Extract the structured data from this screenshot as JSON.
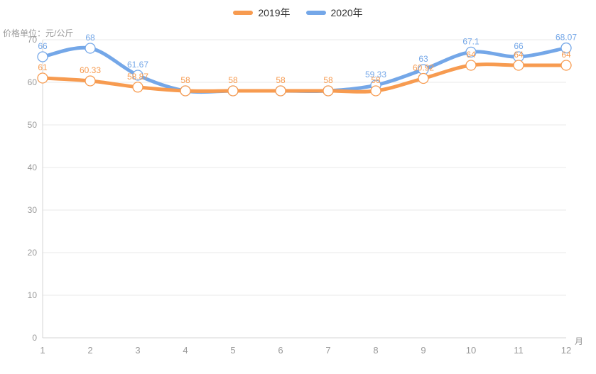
{
  "legend": {
    "items": [
      {
        "label": "2019年",
        "color": "#f79b50"
      },
      {
        "label": "2020年",
        "color": "#74a7e8"
      }
    ]
  },
  "chart_data": {
    "type": "line",
    "title": "",
    "y_axis_title": "价格单位：元/公斤",
    "x_axis_unit": "月",
    "categories": [
      "1",
      "2",
      "3",
      "4",
      "5",
      "6",
      "7",
      "8",
      "9",
      "10",
      "11",
      "12"
    ],
    "ylim": [
      0,
      70
    ],
    "y_ticks": [
      0,
      10,
      20,
      30,
      40,
      50,
      60,
      70
    ],
    "grid": true,
    "smooth": true,
    "legend_position": "top-center",
    "series": [
      {
        "name": "2019年",
        "color": "#f79b50",
        "values": [
          61,
          60.33,
          58.87,
          58,
          58,
          58,
          58,
          58,
          60.92,
          64,
          64,
          64
        ],
        "labels": [
          "61",
          "60.33",
          "58.87",
          "58",
          "58",
          "58",
          "58",
          "58",
          "60.92",
          "64",
          "64",
          "64"
        ]
      },
      {
        "name": "2020年",
        "color": "#74a7e8",
        "values": [
          66,
          68,
          61.67,
          58,
          58,
          58,
          58,
          59.33,
          63,
          67.1,
          66,
          68.07
        ],
        "labels": [
          "66",
          "68",
          "61.67",
          "",
          "",
          "",
          "",
          "59.33",
          "63",
          "67.1",
          "66",
          "68.07"
        ]
      }
    ],
    "styles": {
      "axis_text_color": "#999999",
      "grid_line_color": "#e8e8e8",
      "axis_line_color": "#d4d4d4",
      "legend_text_color": "#333333",
      "marker_fill": "#ffffff",
      "background": "#ffffff"
    }
  }
}
